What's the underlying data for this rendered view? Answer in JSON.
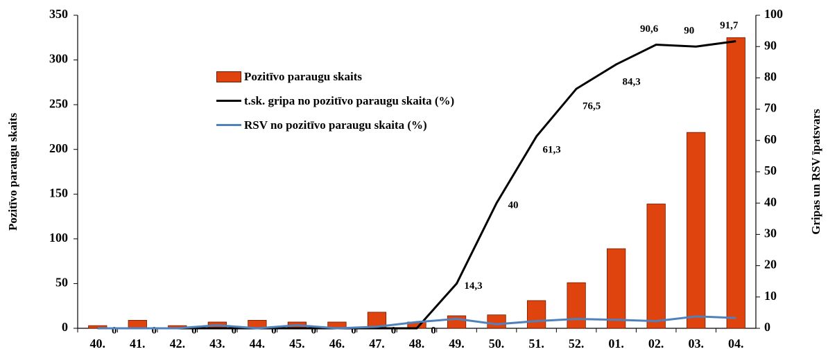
{
  "chart_data": {
    "type": "bar",
    "categories": [
      "40.",
      "41.",
      "42.",
      "43.",
      "44.",
      "45.",
      "46.",
      "47.",
      "48.",
      "49.",
      "50.",
      "51.",
      "52.",
      "01.",
      "02.",
      "03.",
      "04."
    ],
    "series": [
      {
        "name": "Pozitīvo paraugu skaits",
        "type": "bar",
        "color": "#e0440e",
        "axis": "y",
        "values": [
          3,
          9,
          3,
          7,
          9,
          7,
          7,
          18,
          7,
          14,
          15,
          31,
          51,
          89,
          139,
          219,
          325
        ]
      },
      {
        "name": "t.sk. gripa no pozitīvo paraugu skaita (%)",
        "type": "line",
        "color": "#000000",
        "axis": "y2",
        "values": [
          0,
          0,
          0,
          0,
          0,
          0,
          0,
          0,
          0,
          14.3,
          40,
          61.3,
          76.5,
          84.3,
          90.6,
          90,
          91.7
        ],
        "value_labels": [
          "0",
          "0",
          "0",
          "0",
          "0",
          "0",
          "0",
          "0",
          "0",
          "14,3",
          "40",
          "61,3",
          "76,5",
          "84,3",
          "90,6",
          "90",
          "91,7"
        ]
      },
      {
        "name": "RSV no pozitīvo paraugu skaita (%)",
        "type": "line",
        "color": "#4f81bd",
        "axis": "y2",
        "values": [
          0,
          0,
          0,
          1,
          0,
          1,
          0,
          0.5,
          2,
          3,
          1.3,
          2.3,
          3,
          2.7,
          2.3,
          3.8,
          3.3
        ]
      }
    ],
    "y_label": "Pozitīvo  paraugu skaits",
    "y2_label": "Gripas un RSV īpatsvars",
    "ylim": [
      0,
      350
    ],
    "yticks": [
      0,
      50,
      100,
      150,
      200,
      250,
      300,
      350
    ],
    "y2lim": [
      0,
      100
    ],
    "y2ticks": [
      0,
      10,
      20,
      30,
      40,
      50,
      60,
      70,
      80,
      90,
      100
    ],
    "grid": false
  }
}
